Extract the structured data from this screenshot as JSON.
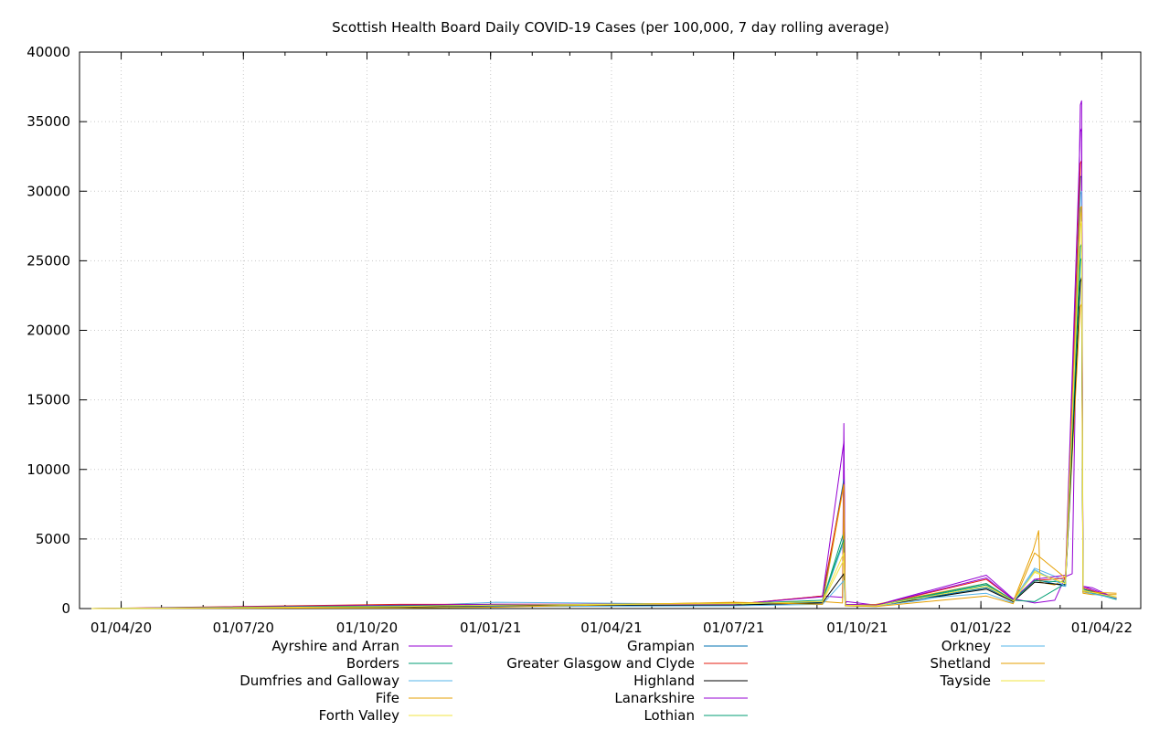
{
  "chart_data": {
    "type": "line",
    "title": "Scottish Health Board Daily COVID-19 Cases (per 100,000, 7 day rolling average)",
    "xlabel": "",
    "ylabel": "",
    "x_range": [
      "2020-03-01",
      "2022-04-30"
    ],
    "ylim": [
      0,
      40000
    ],
    "y_ticks": [
      0,
      5000,
      10000,
      15000,
      20000,
      25000,
      30000,
      35000,
      40000
    ],
    "x_ticks": [
      {
        "date": "2020-04-01",
        "label": "01/04/20"
      },
      {
        "date": "2020-07-01",
        "label": "01/07/20"
      },
      {
        "date": "2020-10-01",
        "label": "01/10/20"
      },
      {
        "date": "2021-01-01",
        "label": "01/01/21"
      },
      {
        "date": "2021-04-01",
        "label": "01/04/21"
      },
      {
        "date": "2021-07-01",
        "label": "01/07/21"
      },
      {
        "date": "2021-10-01",
        "label": "01/10/21"
      },
      {
        "date": "2022-01-01",
        "label": "01/01/22"
      },
      {
        "date": "2022-04-01",
        "label": "01/04/22"
      }
    ],
    "grid": true,
    "legend_position": "bottom",
    "series": [
      {
        "name": "Ayrshire and Arran",
        "color": "#9400d3",
        "x": [
          "2020-03-10",
          "2020-10-01",
          "2020-10-25",
          "2021-01-05",
          "2021-07-01",
          "2021-09-05",
          "2021-09-20",
          "2021-09-21",
          "2021-09-22",
          "2021-09-23",
          "2021-10-15",
          "2022-01-05",
          "2022-01-25",
          "2022-02-10",
          "2022-02-25",
          "2022-03-05",
          "2022-03-10",
          "2022-03-16",
          "2022-03-17",
          "2022-03-18",
          "2022-03-25",
          "2022-04-12"
        ],
        "y": [
          0,
          100,
          250,
          300,
          300,
          900,
          800,
          13300,
          300,
          500,
          250,
          2400,
          700,
          400,
          600,
          2300,
          2500,
          36200,
          36500,
          1600,
          1500,
          700
        ]
      },
      {
        "name": "Borders",
        "color": "#009e73",
        "x": [
          "2020-03-10",
          "2020-10-25",
          "2021-01-05",
          "2021-07-01",
          "2021-09-05",
          "2021-09-21",
          "2021-09-22",
          "2021-10-15",
          "2022-01-05",
          "2022-01-25",
          "2022-02-10",
          "2022-03-05",
          "2022-03-16",
          "2022-03-17",
          "2022-03-18",
          "2022-04-12"
        ],
        "y": [
          0,
          150,
          250,
          250,
          500,
          5500,
          250,
          200,
          1700,
          600,
          500,
          1800,
          26000,
          26200,
          1300,
          650
        ]
      },
      {
        "name": "Dumfries and Galloway",
        "color": "#56b4e9",
        "x": [
          "2020-03-10",
          "2020-10-25",
          "2021-01-05",
          "2021-07-01",
          "2021-09-05",
          "2021-09-21",
          "2021-09-22",
          "2021-10-15",
          "2021-11-15",
          "2022-01-05",
          "2022-01-25",
          "2022-02-10",
          "2022-03-05",
          "2022-03-16",
          "2022-03-17",
          "2022-03-18",
          "2022-04-12"
        ],
        "y": [
          0,
          150,
          450,
          300,
          500,
          4800,
          250,
          200,
          550,
          1500,
          600,
          2900,
          2000,
          28500,
          28900,
          1400,
          800
        ]
      },
      {
        "name": "Fife",
        "color": "#e69f00",
        "x": [
          "2020-03-10",
          "2020-10-25",
          "2021-01-05",
          "2021-07-01",
          "2021-09-05",
          "2021-09-20",
          "2021-09-21",
          "2021-09-22",
          "2021-10-15",
          "2022-01-05",
          "2022-01-25",
          "2022-02-09",
          "2022-02-13",
          "2022-02-14",
          "2022-02-25",
          "2022-03-05",
          "2022-03-16",
          "2022-03-17",
          "2022-03-18",
          "2022-03-25",
          "2022-04-12"
        ],
        "y": [
          0,
          150,
          250,
          400,
          500,
          400,
          9100,
          250,
          300,
          1800,
          500,
          4200,
          5600,
          1900,
          1700,
          2100,
          21700,
          21900,
          1100,
          1000,
          1000
        ]
      },
      {
        "name": "Forth Valley",
        "color": "#f0e442",
        "x": [
          "2020-03-10",
          "2020-10-25",
          "2021-01-05",
          "2021-07-01",
          "2021-09-05",
          "2021-09-21",
          "2021-09-22",
          "2021-10-15",
          "2022-01-05",
          "2022-01-25",
          "2022-02-10",
          "2022-03-05",
          "2022-03-16",
          "2022-03-17",
          "2022-03-18",
          "2022-04-12"
        ],
        "y": [
          0,
          150,
          250,
          300,
          450,
          3500,
          250,
          200,
          1500,
          550,
          2700,
          1800,
          28200,
          28600,
          1300,
          850
        ]
      },
      {
        "name": "Grampian",
        "color": "#0072b2",
        "x": [
          "2020-03-10",
          "2020-10-25",
          "2021-01-05",
          "2021-07-01",
          "2021-09-05",
          "2021-09-21",
          "2021-09-22",
          "2021-10-15",
          "2022-01-05",
          "2022-01-25",
          "2022-02-10",
          "2022-03-05",
          "2022-03-16",
          "2022-03-17",
          "2022-03-18",
          "2022-04-12"
        ],
        "y": [
          0,
          100,
          200,
          250,
          450,
          9300,
          250,
          200,
          1500,
          550,
          2100,
          1600,
          31000,
          31100,
          1300,
          750
        ]
      },
      {
        "name": "Greater Glasgow and Clyde",
        "color": "#e51e10",
        "x": [
          "2020-03-10",
          "2020-10-25",
          "2021-01-05",
          "2021-07-01",
          "2021-09-05",
          "2021-09-21",
          "2021-09-22",
          "2021-10-15",
          "2022-01-05",
          "2022-01-25",
          "2022-02-10",
          "2022-03-05",
          "2022-03-16",
          "2022-03-17",
          "2022-03-18",
          "2022-04-12"
        ],
        "y": [
          0,
          300,
          300,
          300,
          900,
          9000,
          300,
          250,
          2100,
          650,
          2000,
          2200,
          32000,
          32200,
          1500,
          700
        ]
      },
      {
        "name": "Highland",
        "color": "#000000",
        "x": [
          "2020-03-10",
          "2020-10-25",
          "2021-01-05",
          "2021-07-01",
          "2021-09-05",
          "2021-09-21",
          "2021-09-22",
          "2021-10-15",
          "2022-01-05",
          "2022-01-25",
          "2022-02-10",
          "2022-03-05",
          "2022-03-16",
          "2022-03-17",
          "2022-03-18",
          "2022-04-12"
        ],
        "y": [
          0,
          100,
          200,
          250,
          400,
          2500,
          200,
          200,
          1400,
          500,
          1900,
          1700,
          23500,
          23800,
          1400,
          700
        ]
      },
      {
        "name": "Lanarkshire",
        "color": "#9400d3",
        "x": [
          "2020-03-10",
          "2020-10-25",
          "2021-01-05",
          "2021-07-01",
          "2021-09-05",
          "2021-09-21",
          "2021-09-22",
          "2021-10-15",
          "2022-01-05",
          "2022-01-25",
          "2022-02-10",
          "2022-03-05",
          "2022-03-16",
          "2022-03-17",
          "2022-03-18",
          "2022-04-12"
        ],
        "y": [
          0,
          250,
          300,
          300,
          850,
          12000,
          300,
          250,
          2200,
          650,
          2100,
          2400,
          34300,
          34500,
          1600,
          750
        ]
      },
      {
        "name": "Lothian",
        "color": "#009e73",
        "x": [
          "2020-03-10",
          "2020-10-25",
          "2021-01-05",
          "2021-07-01",
          "2021-09-05",
          "2021-09-21",
          "2021-09-22",
          "2021-10-15",
          "2022-01-05",
          "2022-01-25",
          "2022-02-10",
          "2022-03-05",
          "2022-03-16",
          "2022-03-17",
          "2022-03-18",
          "2022-04-12"
        ],
        "y": [
          0,
          200,
          250,
          350,
          600,
          5000,
          250,
          200,
          1800,
          600,
          2000,
          1900,
          25000,
          25200,
          1400,
          700
        ]
      },
      {
        "name": "Orkney",
        "color": "#56b4e9",
        "x": [
          "2020-03-10",
          "2020-10-25",
          "2021-01-05",
          "2021-07-01",
          "2021-09-05",
          "2021-09-21",
          "2021-09-22",
          "2021-10-15",
          "2021-11-10",
          "2022-01-05",
          "2022-01-25",
          "2022-02-10",
          "2022-03-05",
          "2022-03-16",
          "2022-03-17",
          "2022-03-18",
          "2022-04-12"
        ],
        "y": [
          0,
          50,
          150,
          200,
          300,
          2000,
          200,
          150,
          650,
          1100,
          400,
          2800,
          1600,
          29800,
          30000,
          1200,
          700
        ]
      },
      {
        "name": "Shetland",
        "color": "#e69f00",
        "x": [
          "2020-03-10",
          "2020-10-25",
          "2021-01-05",
          "2021-07-01",
          "2021-09-05",
          "2021-09-21",
          "2021-09-22",
          "2021-10-15",
          "2022-01-05",
          "2022-01-25",
          "2022-02-10",
          "2022-03-05",
          "2022-03-16",
          "2022-03-17",
          "2022-03-18",
          "2022-04-12"
        ],
        "y": [
          0,
          50,
          100,
          450,
          300,
          8900,
          200,
          150,
          900,
          350,
          4000,
          2200,
          28800,
          28900,
          1200,
          1100
        ]
      },
      {
        "name": "Tayside",
        "color": "#f0e442",
        "x": [
          "2020-03-10",
          "2020-10-25",
          "2021-01-05",
          "2021-07-01",
          "2021-09-05",
          "2021-09-21",
          "2021-09-22",
          "2021-10-15",
          "2022-01-05",
          "2022-01-25",
          "2022-02-10",
          "2022-03-05",
          "2022-03-16",
          "2022-03-17",
          "2022-03-18",
          "2022-04-12"
        ],
        "y": [
          0,
          150,
          250,
          350,
          500,
          4000,
          250,
          200,
          1600,
          550,
          2600,
          1800,
          27500,
          27800,
          1300,
          800
        ]
      }
    ]
  }
}
